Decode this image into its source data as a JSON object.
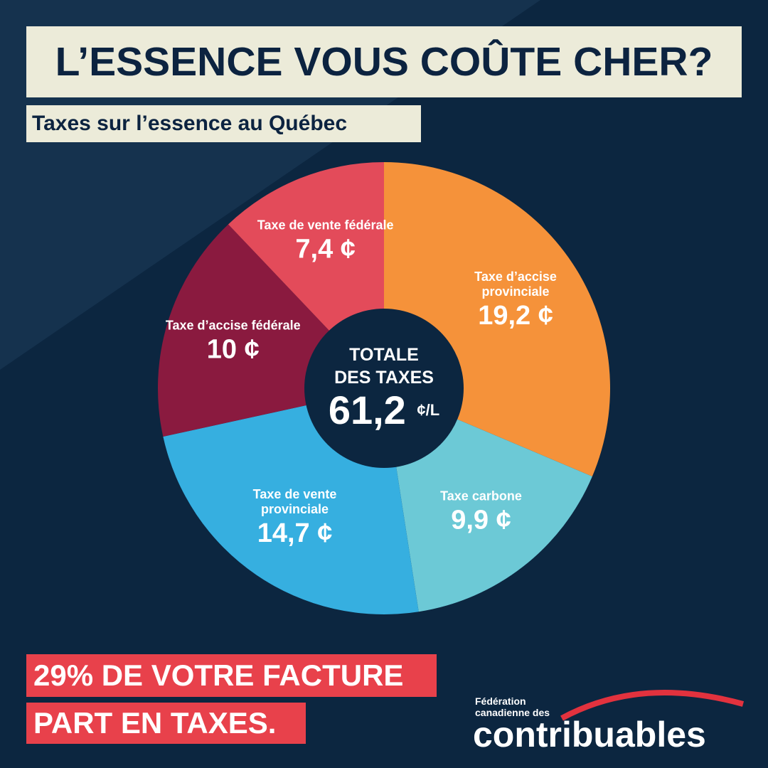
{
  "chart_data": {
    "type": "pie",
    "title": "L’ESSENCE VOUS COÛTE CHER?",
    "subtitle": "Taxes sur l’essence au Québec",
    "categories": [
      "Taxe d’accise provinciale",
      "Taxe carbone",
      "Taxe de vente provinciale",
      "Taxe d’accise fédérale",
      "Taxe de vente fédérale"
    ],
    "values": [
      19.2,
      9.9,
      14.7,
      10,
      7.4
    ],
    "value_labels": [
      "19,2 ¢",
      "9,9 ¢",
      "14,7 ¢",
      "10 ¢",
      "7,4 ¢"
    ],
    "colors": [
      "#f5923a",
      "#6cc9d6",
      "#36afe0",
      "#8a1a3f",
      "#e34b5a"
    ],
    "center_lines": [
      "TOTALE",
      "DES TAXES"
    ],
    "center_value": "61,2",
    "center_unit": "¢/L",
    "footer_lines": [
      "29% DE VOTRE FACTURE",
      "PART EN TAXES."
    ]
  },
  "logo": {
    "small": "Fédération canadienne des",
    "large": "contribuables"
  }
}
